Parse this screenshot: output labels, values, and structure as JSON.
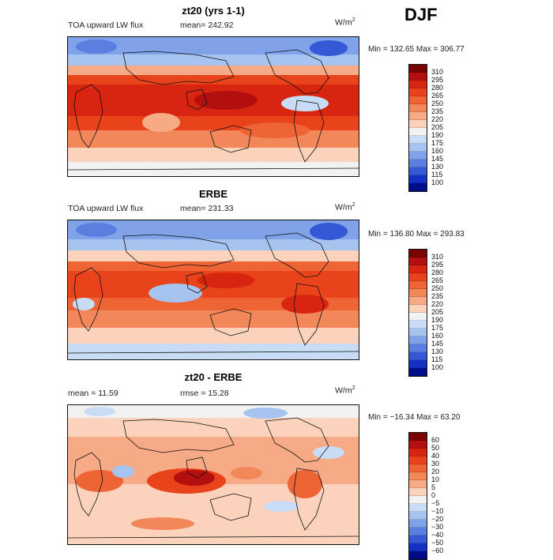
{
  "season": "DJF",
  "panels": [
    {
      "title": "zt20 (yrs 1-1)",
      "variable": "TOA upward LW flux",
      "mean_label": "mean= 242.92",
      "units": "W/m",
      "units_sup": "2",
      "minmax": "Min = 132.65 Max = 306.77",
      "levels": [
        "310",
        "295",
        "280",
        "265",
        "250",
        "235",
        "220",
        "205",
        "190",
        "175",
        "160",
        "145",
        "130",
        "115",
        "100"
      ]
    },
    {
      "title": "ERBE",
      "variable": "TOA upward LW flux",
      "mean_label": "mean= 231.33",
      "units": "W/m",
      "units_sup": "2",
      "minmax": "Min = 136.80 Max = 293.83",
      "levels": [
        "310",
        "295",
        "280",
        "265",
        "250",
        "235",
        "220",
        "205",
        "190",
        "175",
        "160",
        "145",
        "130",
        "115",
        "100"
      ]
    },
    {
      "title": "zt20 - ERBE",
      "mean_label": "mean =  11.59",
      "rmse_label": "rmse =  15.28",
      "units": "W/m",
      "units_sup": "2",
      "minmax": "Min = −16.34 Max =  63.20",
      "levels": [
        "60",
        "50",
        "40",
        "30",
        "20",
        "10",
        "5",
        "0",
        "−5",
        "−10",
        "−20",
        "−30",
        "−40",
        "−50",
        "−60"
      ]
    }
  ],
  "palette": [
    "#7a0403",
    "#b40f0f",
    "#d8250f",
    "#e8431a",
    "#ee6434",
    "#f2875a",
    "#f6ab86",
    "#fbd3bd",
    "#f2f2f2",
    "#c9dcf5",
    "#a7c3ef",
    "#7fa2e8",
    "#5a7fe0",
    "#3458d6",
    "#1530c4",
    "#000c8c"
  ]
}
